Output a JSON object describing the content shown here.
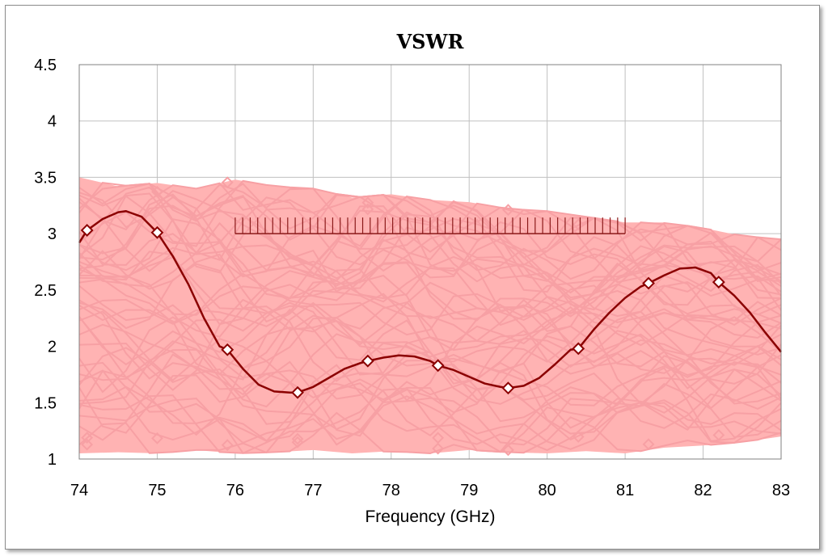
{
  "chart_data": {
    "type": "line",
    "title": "VSWR",
    "xlabel": "Frequency (GHz)",
    "ylabel": "",
    "xlim": [
      74,
      83
    ],
    "ylim": [
      1,
      4.5
    ],
    "x_ticks": [
      "74",
      "75",
      "76",
      "77",
      "78",
      "79",
      "80",
      "81",
      "82",
      "83"
    ],
    "y_ticks": [
      "1",
      "1.5",
      "2",
      "2.5",
      "3",
      "3.5",
      "4",
      "4.5"
    ],
    "grid": true,
    "legend": "none",
    "colors": {
      "main_series": "#8b0000",
      "monte_carlo_band": "#ffb3b3",
      "monte_carlo_lines": "#f7a0a4",
      "spec_marker": "#8b1a1a",
      "grid": "#c0c0c0"
    },
    "series": [
      {
        "x": [
          74.0,
          74.1,
          74.3,
          74.5,
          74.6,
          74.8,
          75.0,
          75.2,
          75.4,
          75.6,
          75.8,
          75.9,
          76.1,
          76.3,
          76.5,
          76.7,
          76.8,
          77.0,
          77.2,
          77.4,
          77.6,
          77.7,
          77.9,
          78.1,
          78.3,
          78.5,
          78.6,
          78.8,
          79.0,
          79.2,
          79.4,
          79.5,
          79.7,
          79.9,
          80.1,
          80.3,
          80.4,
          80.6,
          80.8,
          81.0,
          81.2,
          81.3,
          81.5,
          81.7,
          81.9,
          82.1,
          82.2,
          82.4,
          82.6,
          82.8,
          83.0
        ],
        "values": [
          2.92,
          3.03,
          3.13,
          3.19,
          3.2,
          3.15,
          3.01,
          2.8,
          2.55,
          2.25,
          2.0,
          1.97,
          1.8,
          1.66,
          1.6,
          1.59,
          1.59,
          1.64,
          1.72,
          1.8,
          1.85,
          1.87,
          1.9,
          1.92,
          1.91,
          1.87,
          1.83,
          1.79,
          1.73,
          1.67,
          1.64,
          1.63,
          1.65,
          1.72,
          1.84,
          1.97,
          1.98,
          2.15,
          2.3,
          2.43,
          2.53,
          2.56,
          2.63,
          2.69,
          2.7,
          2.65,
          2.57,
          2.45,
          2.3,
          2.12,
          1.95
        ]
      }
    ],
    "markers_x": [
      74.1,
      75.0,
      75.9,
      76.8,
      77.7,
      78.6,
      79.5,
      80.4,
      81.3,
      82.2
    ],
    "spec_line": {
      "x_range": [
        76,
        81
      ],
      "value": 3.0
    },
    "monte_carlo_band": {
      "x": [
        74,
        74.5,
        75,
        75.5,
        76,
        76.5,
        77,
        77.5,
        78,
        78.5,
        79,
        79.5,
        80,
        80.5,
        81,
        81.5,
        82,
        82.5,
        83
      ],
      "upper": [
        3.5,
        3.42,
        3.45,
        3.4,
        3.48,
        3.42,
        3.4,
        3.32,
        3.35,
        3.3,
        3.28,
        3.22,
        3.2,
        3.15,
        3.1,
        3.1,
        3.05,
        2.98,
        2.95
      ],
      "lower": [
        1.05,
        1.06,
        1.05,
        1.08,
        1.05,
        1.06,
        1.08,
        1.05,
        1.07,
        1.05,
        1.08,
        1.06,
        1.05,
        1.07,
        1.05,
        1.1,
        1.12,
        1.15,
        1.2
      ]
    }
  }
}
